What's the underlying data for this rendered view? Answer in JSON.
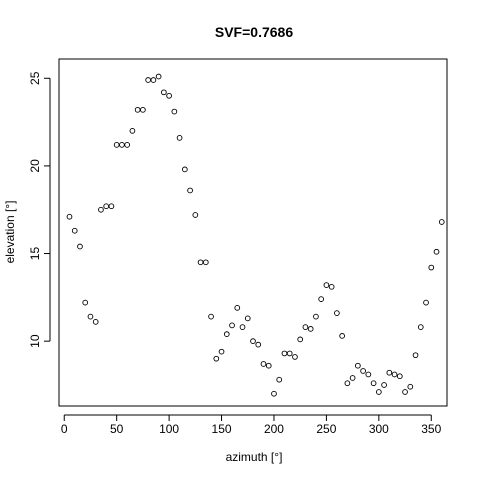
{
  "chart_data": {
    "type": "scatter",
    "title": "SVF=0.7686",
    "xlabel": "azimuth [°]",
    "ylabel": "elevation [°]",
    "xlim": [
      -5,
      365
    ],
    "ylim": [
      6.3,
      26.1
    ],
    "x_ticks": [
      "0",
      "50",
      "100",
      "150",
      "200",
      "250",
      "300",
      "350"
    ],
    "y_ticks": [
      "10",
      "15",
      "20",
      "25"
    ],
    "grid": false,
    "marker": "open-circle",
    "series": [
      {
        "x": [
          5,
          10,
          15,
          20,
          25,
          30,
          35,
          40,
          45,
          50,
          55,
          60,
          65,
          70,
          75,
          80,
          85,
          90,
          95,
          100,
          105,
          110,
          115,
          120,
          125,
          130,
          135,
          140,
          145,
          150,
          155,
          160,
          165,
          170,
          175,
          180,
          185,
          190,
          195,
          200,
          205,
          210,
          215,
          220,
          225,
          230,
          235,
          240,
          245,
          250,
          255,
          260,
          265,
          270,
          275,
          280,
          285,
          290,
          295,
          300,
          305,
          310,
          315,
          320,
          325,
          330,
          335,
          340,
          345,
          350,
          355,
          360
        ],
        "y": [
          17.1,
          16.3,
          15.4,
          12.2,
          11.4,
          11.1,
          17.5,
          17.7,
          17.7,
          21.2,
          21.2,
          21.2,
          22.0,
          23.2,
          23.2,
          24.9,
          24.9,
          25.1,
          24.2,
          24.0,
          23.1,
          21.6,
          19.8,
          18.6,
          17.2,
          14.5,
          14.5,
          11.4,
          9.0,
          9.4,
          10.4,
          10.9,
          11.9,
          10.8,
          11.3,
          10.0,
          9.8,
          8.7,
          8.6,
          7.0,
          7.8,
          9.3,
          9.3,
          9.1,
          10.1,
          10.8,
          10.7,
          11.4,
          12.4,
          13.2,
          13.1,
          11.6,
          10.3,
          7.6,
          7.9,
          8.6,
          8.3,
          8.1,
          7.6,
          7.1,
          7.5,
          8.2,
          8.1,
          8.0,
          7.1,
          7.4,
          9.2,
          10.8,
          12.2,
          14.2,
          15.1,
          16.8
        ]
      }
    ]
  }
}
